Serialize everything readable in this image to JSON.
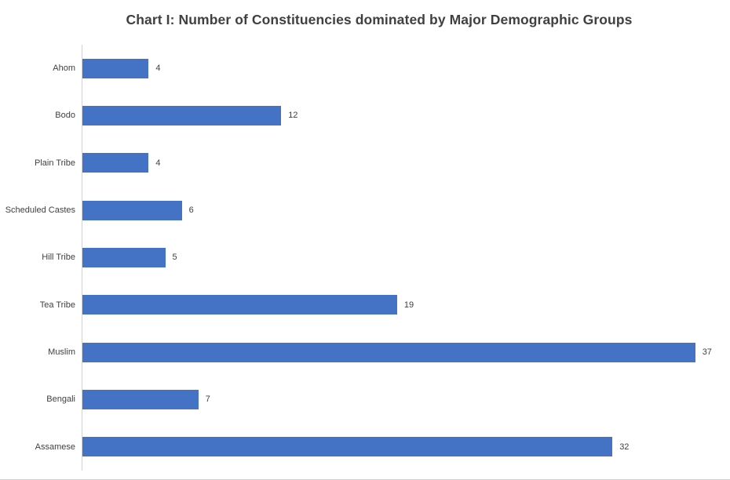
{
  "title": "Chart I: Number of Constituencies dominated by Major Demographic Groups",
  "colors": {
    "bar": "#4472C4",
    "axis_line": "#d2d2d2",
    "title_text": "#404040",
    "label_text": "#404040",
    "background": "#ffffff"
  },
  "chart_data": {
    "type": "bar",
    "orientation": "horizontal",
    "title": "Chart I: Number of Constituencies dominated by Major Demographic Groups",
    "categories": [
      "Ahom",
      "Bodo",
      "Plain Tribe",
      "Scheduled Castes",
      "Hill Tribe",
      "Tea Tribe",
      "Muslim",
      "Bengali",
      "Assamese"
    ],
    "values": [
      4,
      12,
      4,
      6,
      5,
      19,
      37,
      7,
      32
    ],
    "data_labels": [
      4,
      12,
      4,
      6,
      5,
      19,
      37,
      7,
      32
    ],
    "xlabel": "",
    "ylabel": "",
    "xlim": [
      0,
      40
    ],
    "grid": false,
    "legend": false,
    "data_labels_shown": true
  }
}
